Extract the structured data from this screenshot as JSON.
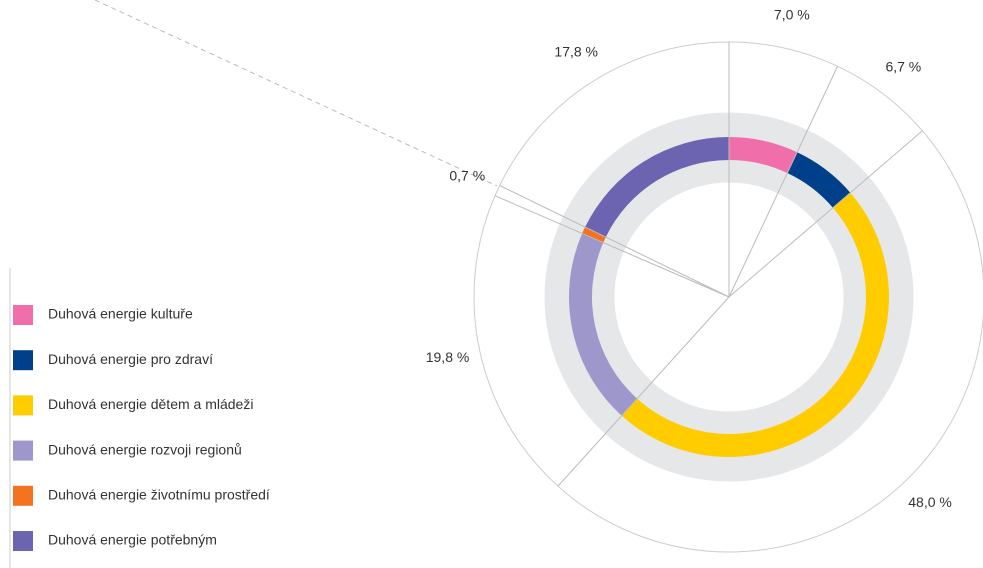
{
  "chart_data": {
    "type": "donut",
    "categories": [
      "Duhová energie kultuře",
      "Duhová energie pro zdraví",
      "Duhová energie dětem a mládeži",
      "Duhová energie rozvoji regionů",
      "Duhová energie životnímu prostředí",
      "Duhová energie potřebným"
    ],
    "values": [
      7.0,
      6.7,
      48.0,
      19.8,
      0.7,
      17.8
    ],
    "value_labels": [
      "7,0 %",
      "6,7 %",
      "48,0 %",
      "19,8 %",
      "0,7 %",
      "17,8 %"
    ],
    "colors": [
      "#f06eaa",
      "#003f8a",
      "#ffcc00",
      "#9e97cc",
      "#f47321",
      "#6c64b0"
    ],
    "legend": "left"
  }
}
